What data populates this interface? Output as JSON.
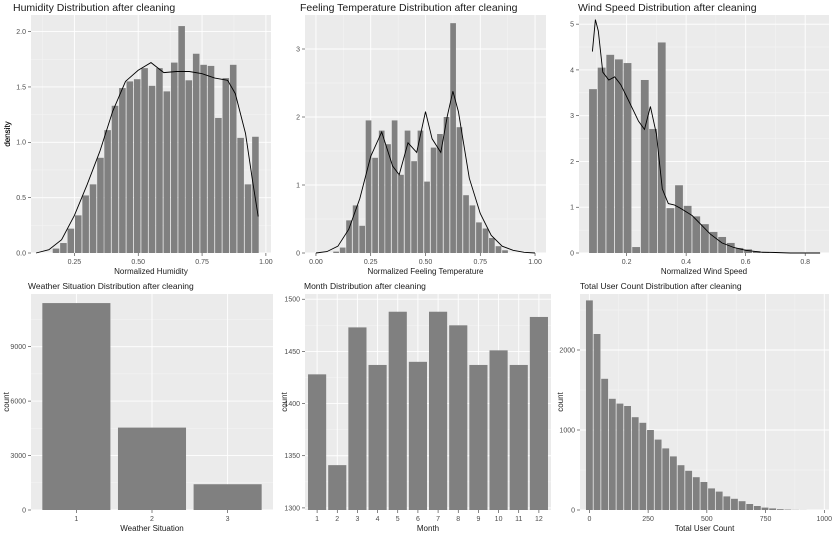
{
  "colors": {
    "panel_bg": "#ebebeb",
    "bar": "#808080",
    "grid": "#ffffff",
    "density_line": "#000000"
  },
  "chart_data": [
    {
      "type": "bar",
      "subtype": "histogram_with_density",
      "title": "Humidity Distribution after cleaning",
      "xlabel": "Normalized Humidity",
      "ylabel": "density",
      "xlim": [
        0.08,
        1.02
      ],
      "ylim": [
        0,
        2.15
      ],
      "xticks": [
        0.25,
        0.5,
        0.75,
        1.0
      ],
      "xtick_labels": [
        "0.25",
        "0.50",
        "0.75",
        "1.00"
      ],
      "yticks": [
        0,
        0.5,
        1.0,
        1.5,
        2.0
      ],
      "ytick_labels": [
        "0.0",
        "0.5",
        "1.0",
        "1.5",
        "2.0"
      ],
      "grid": true,
      "bin_width": 0.0289,
      "bins": {
        "x": [
          0.178,
          0.207,
          0.236,
          0.265,
          0.294,
          0.323,
          0.352,
          0.38,
          0.409,
          0.438,
          0.467,
          0.496,
          0.525,
          0.554,
          0.583,
          0.612,
          0.641,
          0.67,
          0.698,
          0.727,
          0.756,
          0.785,
          0.814,
          0.843,
          0.872,
          0.901,
          0.93,
          0.959
        ],
        "y": [
          0.04,
          0.09,
          0.22,
          0.34,
          0.52,
          0.62,
          0.86,
          1.11,
          1.33,
          1.49,
          1.55,
          1.57,
          1.67,
          1.51,
          1.67,
          1.46,
          1.72,
          2.05,
          1.56,
          1.8,
          1.7,
          1.69,
          1.22,
          1.58,
          1.7,
          1.04,
          0.62,
          1.05
        ]
      },
      "density": {
        "x": [
          0.1,
          0.15,
          0.2,
          0.25,
          0.3,
          0.35,
          0.4,
          0.45,
          0.5,
          0.55,
          0.6,
          0.65,
          0.7,
          0.75,
          0.8,
          0.85,
          0.88,
          0.92,
          0.95,
          0.97
        ],
        "y": [
          0.0,
          0.03,
          0.12,
          0.34,
          0.62,
          0.92,
          1.28,
          1.55,
          1.65,
          1.72,
          1.63,
          1.64,
          1.64,
          1.62,
          1.58,
          1.56,
          1.44,
          1.08,
          0.62,
          0.33
        ]
      }
    },
    {
      "type": "bar",
      "subtype": "histogram_with_density",
      "title": "Feeling Temperature Distribution after cleaning",
      "xlabel": "Normalized Feeling Temperature",
      "ylabel": "density",
      "xlim": [
        -0.05,
        1.05
      ],
      "ylim": [
        0,
        3.5
      ],
      "xticks": [
        0,
        0.25,
        0.5,
        0.75,
        1.0
      ],
      "xtick_labels": [
        "0.00",
        "0.25",
        "0.50",
        "0.75",
        "1.00"
      ],
      "yticks": [
        0,
        1,
        2,
        3
      ],
      "ytick_labels": [
        "0",
        "1",
        "2",
        "3"
      ],
      "grid": true,
      "bin_width": 0.0296,
      "bins": {
        "x": [
          0.092,
          0.122,
          0.151,
          0.181,
          0.211,
          0.24,
          0.27,
          0.3,
          0.329,
          0.359,
          0.388,
          0.418,
          0.448,
          0.477,
          0.507,
          0.537,
          0.566,
          0.596,
          0.626,
          0.655,
          0.685,
          0.714,
          0.744,
          0.774,
          0.803,
          0.833,
          0.863
        ],
        "y": [
          0.02,
          0.08,
          0.48,
          0.7,
          0.4,
          1.95,
          1.4,
          1.8,
          1.6,
          1.95,
          1.15,
          1.8,
          1.35,
          1.8,
          1.05,
          1.55,
          1.75,
          2.0,
          3.38,
          1.85,
          0.85,
          0.7,
          0.45,
          0.36,
          0.22,
          0.1,
          0.04
        ]
      },
      "density": {
        "x": [
          0.0,
          0.05,
          0.1,
          0.15,
          0.2,
          0.25,
          0.3,
          0.35,
          0.38,
          0.42,
          0.46,
          0.5,
          0.53,
          0.57,
          0.6,
          0.625,
          0.65,
          0.7,
          0.75,
          0.8,
          0.85,
          0.9,
          0.95,
          1.0
        ],
        "y": [
          0.0,
          0.02,
          0.1,
          0.35,
          0.8,
          1.42,
          1.78,
          1.28,
          1.15,
          1.62,
          1.48,
          2.08,
          1.68,
          1.48,
          2.02,
          2.38,
          2.08,
          1.1,
          0.58,
          0.26,
          0.1,
          0.04,
          0.01,
          0.0
        ]
      }
    },
    {
      "type": "bar",
      "subtype": "histogram_with_density",
      "title": "Wind Speed Distribution after cleaning",
      "xlabel": "Normalized Wind Speed",
      "ylabel": "density",
      "xlim": [
        0.04,
        0.88
      ],
      "ylim": [
        0,
        5.2
      ],
      "xticks": [
        0.2,
        0.4,
        0.6,
        0.8
      ],
      "xtick_labels": [
        "0.2",
        "0.4",
        "0.6",
        "0.8"
      ],
      "yticks": [
        0,
        1,
        2,
        3,
        4,
        5
      ],
      "ytick_labels": [
        "0",
        "1",
        "2",
        "3",
        "4",
        "5"
      ],
      "grid": true,
      "bin_width": 0.0289,
      "bins": {
        "x": [
          0.087,
          0.116,
          0.145,
          0.174,
          0.203,
          0.232,
          0.261,
          0.289,
          0.318,
          0.347,
          0.376,
          0.405,
          0.434,
          0.463,
          0.492,
          0.521,
          0.55,
          0.579,
          0.608,
          0.637,
          0.666
        ],
        "y": [
          3.58,
          4.05,
          4.33,
          4.23,
          4.15,
          0.13,
          3.78,
          2.71,
          4.6,
          0.98,
          1.48,
          1.03,
          0.8,
          0.63,
          0.46,
          0.35,
          0.22,
          0.11,
          0.08,
          0.04,
          0.02
        ]
      },
      "density": {
        "x": [
          0.085,
          0.095,
          0.105,
          0.12,
          0.14,
          0.16,
          0.18,
          0.2,
          0.22,
          0.24,
          0.26,
          0.28,
          0.3,
          0.32,
          0.34,
          0.36,
          0.38,
          0.4,
          0.42,
          0.45,
          0.48,
          0.52,
          0.56,
          0.6,
          0.65,
          0.7,
          0.75,
          0.8,
          0.85
        ],
        "y": [
          4.4,
          5.1,
          4.85,
          3.95,
          3.78,
          3.85,
          3.68,
          3.42,
          3.15,
          2.88,
          2.7,
          3.2,
          2.6,
          1.4,
          1.08,
          1.05,
          0.98,
          0.9,
          0.82,
          0.62,
          0.42,
          0.22,
          0.12,
          0.06,
          0.02,
          0.01,
          0.0,
          0.0,
          0.0
        ]
      }
    },
    {
      "type": "bar",
      "title": "Weather Situation Distribution after cleaning",
      "xlabel": "Weather Situation",
      "ylabel": "count",
      "categories": [
        "1",
        "2",
        "3"
      ],
      "values": [
        11400,
        4540,
        1420
      ],
      "ylim": [
        0,
        11900
      ],
      "yticks": [
        0,
        3000,
        6000,
        9000
      ],
      "ytick_labels": [
        "0",
        "3000",
        "6000",
        "9000"
      ],
      "grid": true
    },
    {
      "type": "bar",
      "title": "Month Distribution after cleaning",
      "xlabel": "Month",
      "ylabel": "count",
      "categories": [
        "1",
        "2",
        "3",
        "4",
        "5",
        "6",
        "7",
        "8",
        "9",
        "10",
        "11",
        "12"
      ],
      "values": [
        1428,
        1341,
        1473,
        1437,
        1488,
        1440,
        1488,
        1475,
        1437,
        1451,
        1437,
        1483
      ],
      "ylim": [
        1298,
        1505
      ],
      "yticks": [
        1300,
        1350,
        1400,
        1450,
        1500
      ],
      "ytick_labels": [
        "1300",
        "1350",
        "1400",
        "1450",
        "1500"
      ],
      "grid": true
    },
    {
      "type": "bar",
      "subtype": "histogram",
      "title": "Total User Count Distribution after cleaning",
      "xlabel": "Total User Count",
      "ylabel": "count",
      "xlim": [
        -40,
        1020
      ],
      "ylim": [
        0,
        2700
      ],
      "xticks": [
        0,
        250,
        500,
        750,
        1000
      ],
      "xtick_labels": [
        "0",
        "250",
        "500",
        "750",
        "1000"
      ],
      "yticks": [
        0,
        1000,
        2000
      ],
      "ytick_labels": [
        "0",
        "1000",
        "2000"
      ],
      "grid": true,
      "bin_width": 32.5,
      "bins": {
        "x": [
          0,
          32.5,
          65,
          97.5,
          130,
          162.5,
          195,
          227.5,
          260,
          292.5,
          325,
          357.5,
          390,
          422.5,
          455,
          487.5,
          520,
          552.5,
          585,
          617.5,
          650,
          682.5,
          715,
          747.5,
          780,
          812.5,
          845,
          877.5,
          910,
          942.5,
          975
        ],
        "y": [
          2620,
          2200,
          1640,
          1390,
          1330,
          1300,
          1160,
          1090,
          1000,
          880,
          770,
          670,
          560,
          490,
          410,
          350,
          270,
          230,
          170,
          140,
          110,
          75,
          50,
          30,
          20,
          10,
          5,
          2,
          1,
          0,
          0
        ]
      }
    }
  ]
}
